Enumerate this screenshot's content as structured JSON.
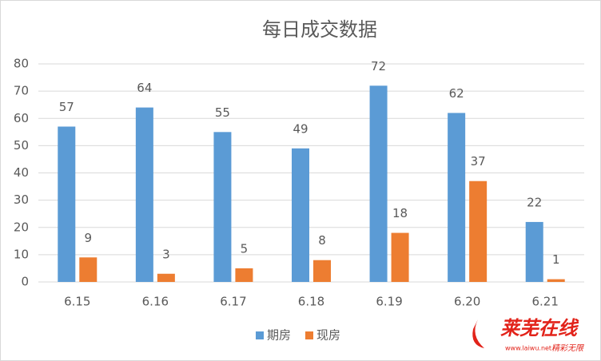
{
  "chart_data": {
    "type": "bar",
    "title": "每日成交数据",
    "categories": [
      "6.15",
      "6.16",
      "6.17",
      "6.18",
      "6.19",
      "6.20",
      "6.21"
    ],
    "series": [
      {
        "name": "期房",
        "color": "#5b9bd5",
        "values": [
          57,
          64,
          55,
          49,
          72,
          62,
          22
        ]
      },
      {
        "name": "现房",
        "color": "#ed7d31",
        "values": [
          9,
          3,
          5,
          8,
          18,
          37,
          1
        ]
      }
    ],
    "ylim": [
      0,
      80
    ],
    "yticks": [
      0,
      10,
      20,
      30,
      40,
      50,
      60,
      70,
      80
    ],
    "grid": true,
    "legend": "bottom"
  },
  "watermark": {
    "brand": "莱芜在线",
    "url": "www.laiwu.net",
    "slogan": "精彩无限"
  }
}
